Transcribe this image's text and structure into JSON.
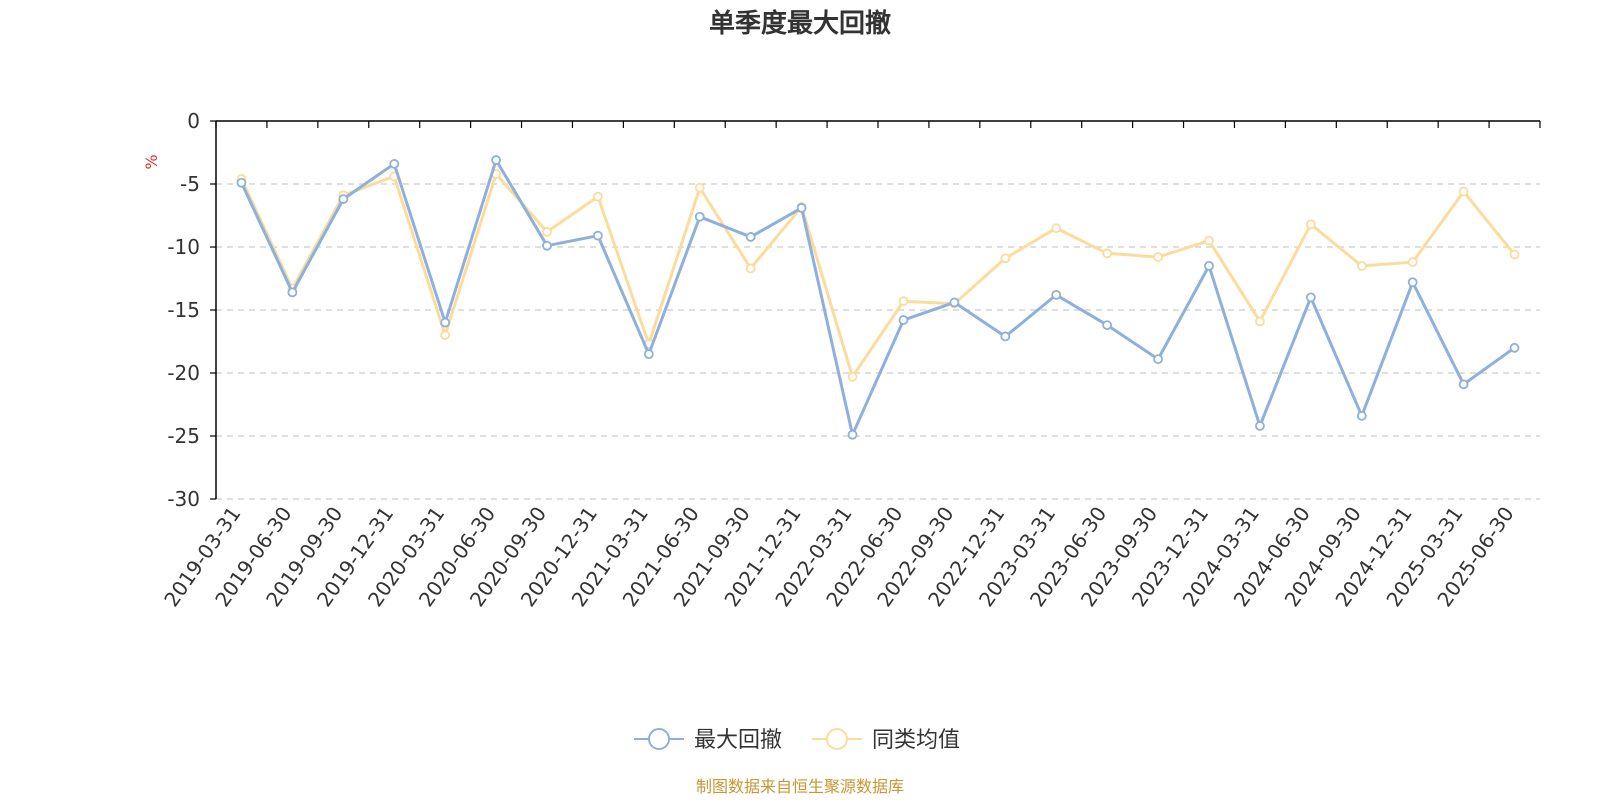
{
  "colors": {
    "series_max_drawdown": "#8eb0dc",
    "series_peer_average": "#fcdc9c",
    "axis": "#000000",
    "grid": "#cccccc",
    "unit": "#e8302c",
    "source": "#c89632"
  },
  "chart_data": {
    "type": "line",
    "title": "单季度最大回撤",
    "ylabel": "%",
    "ylim": [
      -30,
      0
    ],
    "yticks": [
      0,
      -5,
      -10,
      -15,
      -20,
      -25,
      -30
    ],
    "grid": true,
    "legend_position": "bottom-center",
    "categories": [
      "2019-03-31",
      "2019-06-30",
      "2019-09-30",
      "2019-12-31",
      "2020-03-31",
      "2020-06-30",
      "2020-09-30",
      "2020-12-31",
      "2021-03-31",
      "2021-06-30",
      "2021-09-30",
      "2021-12-31",
      "2022-03-31",
      "2022-06-30",
      "2022-09-30",
      "2022-12-31",
      "2023-03-31",
      "2023-06-30",
      "2023-09-30",
      "2023-12-31",
      "2024-03-31",
      "2024-06-30",
      "2024-09-30",
      "2024-12-31",
      "2025-03-31",
      "2025-06-30"
    ],
    "series": [
      {
        "name": "最大回撤",
        "values": [
          -4.9,
          -13.6,
          -6.2,
          -3.4,
          -16.0,
          -3.1,
          -9.9,
          -9.1,
          -18.5,
          -7.6,
          -9.2,
          -6.9,
          -24.9,
          -15.8,
          -14.4,
          -17.1,
          -13.8,
          -16.2,
          -18.9,
          -11.5,
          -24.2,
          -14.0,
          -23.4,
          -12.8,
          -20.9,
          -18.0
        ]
      },
      {
        "name": "同类均值",
        "values": [
          -4.6,
          -13.3,
          -5.9,
          -4.4,
          -17.0,
          -4.2,
          -8.8,
          -6.0,
          -17.7,
          -5.3,
          -11.7,
          -6.8,
          -20.3,
          -14.3,
          -14.5,
          -10.9,
          -8.5,
          -10.5,
          -10.8,
          -9.5,
          -15.9,
          -8.2,
          -11.5,
          -11.2,
          -5.6,
          -10.6
        ]
      }
    ]
  },
  "source_note": "制图数据来自恒生聚源数据库"
}
